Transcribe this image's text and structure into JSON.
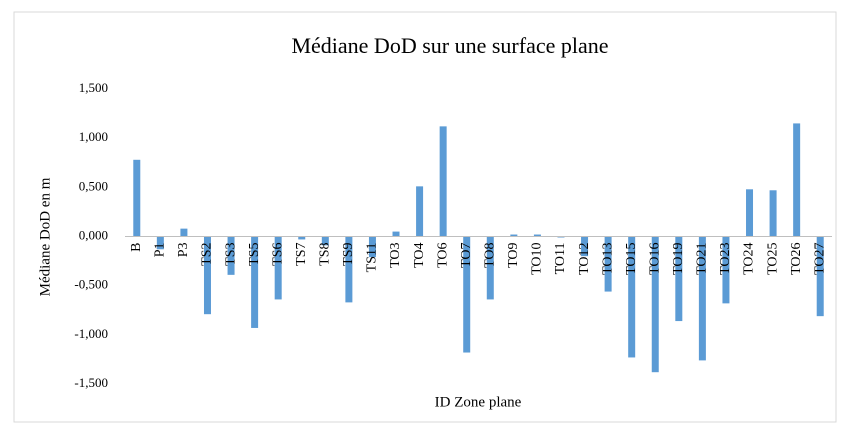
{
  "chart_data": {
    "type": "bar",
    "title": "Médiane DoD sur une surface plane",
    "x_label": "ID Zone plane",
    "y_label": "Médiane DoD en m",
    "categories": [
      "B",
      "P1",
      "P3",
      "TS2",
      "TS3",
      "TS5",
      "TS6",
      "TS7",
      "TS8",
      "TS9",
      "TS11",
      "TO3",
      "TO4",
      "TO6",
      "TO7",
      "TO8",
      "TO9",
      "TO10",
      "TO11",
      "TO12",
      "TO13",
      "TO15",
      "TO16",
      "TO19",
      "TO21",
      "TO23",
      "TO24",
      "TO25",
      "TO26",
      "TO27"
    ],
    "values": [
      0.78,
      -0.13,
      0.08,
      -0.79,
      -0.39,
      -0.93,
      -0.64,
      -0.03,
      -0.09,
      -0.67,
      -0.21,
      0.05,
      0.51,
      1.12,
      -1.18,
      -0.64,
      0.02,
      0.02,
      -0.01,
      -0.2,
      -0.56,
      -1.23,
      -1.38,
      -0.86,
      -1.26,
      -0.68,
      0.48,
      0.47,
      1.15,
      -0.81
    ],
    "color": "#5b9bd5",
    "ylim": [
      -1.5,
      1.5
    ],
    "yticks": [
      {
        "value": -1.5,
        "label": "-1,500"
      },
      {
        "value": -1,
        "label": "-1,000"
      },
      {
        "value": -0.5,
        "label": "-0,500"
      },
      {
        "value": 0,
        "label": "0,000"
      },
      {
        "value": 0.5,
        "label": "0,500"
      },
      {
        "value": 1,
        "label": "1,000"
      },
      {
        "value": 1.5,
        "label": "1,500"
      }
    ],
    "grid": false
  }
}
